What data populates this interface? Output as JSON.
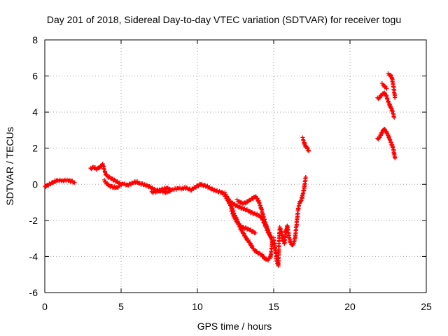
{
  "chart_data": {
    "type": "scatter",
    "title": "Day 201 of 2018, Sidereal Day-to-day VTEC variation (SDTVAR) for receiver togu",
    "xlabel": "GPS time / hours",
    "ylabel": "SDTVAR / TECUs",
    "xlim": [
      0,
      25
    ],
    "ylim": [
      -6,
      8
    ],
    "x_ticks": [
      0,
      5,
      10,
      15,
      20,
      25
    ],
    "y_ticks": [
      -6,
      -4,
      -2,
      0,
      2,
      4,
      6,
      8
    ],
    "x_tick_labels": [
      "0",
      "5",
      "10",
      "15",
      "20",
      "25"
    ],
    "y_tick_labels": [
      "-6",
      "-4",
      "-2",
      "0",
      "2",
      "4",
      "6",
      "8"
    ],
    "grid": true,
    "marker": "+",
    "color": "#ff0000",
    "series": [
      {
        "name": "SDTVAR",
        "segments": [
          [
            [
              0.0,
              -0.15
            ],
            [
              0.2,
              -0.05
            ],
            [
              0.4,
              0.05
            ],
            [
              0.6,
              0.15
            ],
            [
              0.8,
              0.2
            ],
            [
              1.0,
              0.22
            ],
            [
              1.2,
              0.2
            ],
            [
              1.4,
              0.22
            ],
            [
              1.6,
              0.2
            ],
            [
              1.8,
              0.15
            ],
            [
              1.95,
              0.1
            ]
          ],
          [
            [
              3.0,
              0.85
            ],
            [
              3.2,
              0.95
            ],
            [
              3.4,
              0.85
            ],
            [
              3.6,
              0.95
            ],
            [
              3.8,
              1.1
            ],
            [
              3.9,
              0.8
            ],
            [
              4.0,
              0.55
            ],
            [
              4.2,
              0.4
            ],
            [
              4.4,
              0.3
            ],
            [
              4.6,
              0.2
            ],
            [
              4.8,
              0.1
            ],
            [
              5.0,
              0.0
            ],
            [
              5.2,
              0.02
            ],
            [
              5.4,
              -0.05
            ],
            [
              5.6,
              0.0
            ],
            [
              5.8,
              0.1
            ],
            [
              6.0,
              0.15
            ],
            [
              6.2,
              0.05
            ],
            [
              6.4,
              0.0
            ],
            [
              6.6,
              -0.05
            ],
            [
              6.8,
              -0.1
            ],
            [
              7.0,
              -0.2
            ],
            [
              7.2,
              -0.3
            ],
            [
              7.4,
              -0.35
            ],
            [
              7.6,
              -0.3
            ],
            [
              7.8,
              -0.25
            ],
            [
              8.0,
              -0.2
            ],
            [
              8.2,
              -0.3
            ],
            [
              8.4,
              -0.28
            ],
            [
              8.6,
              -0.25
            ],
            [
              8.8,
              -0.22
            ],
            [
              9.0,
              -0.25
            ],
            [
              9.2,
              -0.2
            ],
            [
              9.4,
              -0.25
            ],
            [
              9.6,
              -0.3
            ],
            [
              9.8,
              -0.2
            ],
            [
              10.0,
              -0.1
            ],
            [
              10.2,
              0.0
            ],
            [
              10.4,
              -0.05
            ],
            [
              10.6,
              -0.1
            ],
            [
              10.8,
              -0.2
            ],
            [
              11.0,
              -0.3
            ],
            [
              11.2,
              -0.35
            ],
            [
              11.4,
              -0.4
            ],
            [
              11.6,
              -0.45
            ],
            [
              11.8,
              -0.6
            ],
            [
              12.0,
              -0.9
            ],
            [
              12.2,
              -1.2
            ],
            [
              12.4,
              -1.6
            ],
            [
              12.6,
              -2.0
            ],
            [
              12.8,
              -2.4
            ],
            [
              13.0,
              -2.7
            ],
            [
              13.2,
              -3.0
            ],
            [
              13.4,
              -3.2
            ],
            [
              13.6,
              -3.5
            ],
            [
              13.8,
              -3.7
            ],
            [
              14.0,
              -3.8
            ],
            [
              14.2,
              -3.9
            ],
            [
              14.4,
              -4.1
            ],
            [
              14.6,
              -4.2
            ],
            [
              14.8,
              -4.0
            ],
            [
              14.9,
              -3.3
            ]
          ],
          [
            [
              3.9,
              0.2
            ],
            [
              4.1,
              0.0
            ],
            [
              4.3,
              -0.1
            ],
            [
              4.5,
              -0.15
            ],
            [
              4.7,
              -0.2
            ],
            [
              4.9,
              -0.1
            ]
          ],
          [
            [
              7.0,
              -0.45
            ],
            [
              7.3,
              -0.4
            ],
            [
              7.6,
              -0.35
            ],
            [
              7.9,
              -0.45
            ],
            [
              8.2,
              -0.4
            ]
          ],
          [
            [
              11.8,
              -0.5
            ],
            [
              12.0,
              -0.8
            ],
            [
              12.2,
              -1.0
            ],
            [
              12.4,
              -1.1
            ],
            [
              12.6,
              -1.2
            ],
            [
              12.8,
              -1.3
            ],
            [
              13.0,
              -1.35
            ],
            [
              13.2,
              -1.4
            ],
            [
              13.4,
              -1.5
            ],
            [
              13.6,
              -1.6
            ],
            [
              13.8,
              -1.65
            ],
            [
              14.0,
              -1.7
            ],
            [
              14.2,
              -1.85
            ],
            [
              14.4,
              -2.2
            ],
            [
              14.6,
              -2.6
            ],
            [
              14.8,
              -2.9
            ]
          ],
          [
            [
              12.2,
              -1.4
            ],
            [
              12.4,
              -1.8
            ],
            [
              12.6,
              -2.1
            ],
            [
              12.8,
              -2.3
            ],
            [
              13.0,
              -2.4
            ],
            [
              13.2,
              -2.45
            ],
            [
              13.4,
              -2.5
            ],
            [
              13.6,
              -2.6
            ],
            [
              13.8,
              -2.7
            ]
          ],
          [
            [
              12.6,
              -0.9
            ],
            [
              12.8,
              -1.0
            ],
            [
              13.0,
              -1.05
            ],
            [
              13.2,
              -1.0
            ],
            [
              13.4,
              -0.9
            ],
            [
              13.6,
              -0.8
            ],
            [
              13.8,
              -0.65
            ],
            [
              14.0,
              -0.9
            ],
            [
              14.2,
              -1.4
            ],
            [
              14.4,
              -2.0
            ],
            [
              14.6,
              -2.5
            ],
            [
              14.8,
              -2.9
            ],
            [
              14.95,
              -3.3
            ]
          ],
          [
            [
              15.0,
              -3.0
            ],
            [
              15.1,
              -3.6
            ],
            [
              15.2,
              -4.2
            ],
            [
              15.3,
              -4.5
            ],
            [
              15.35,
              -3.2
            ],
            [
              15.4,
              -2.4
            ],
            [
              15.5,
              -2.6
            ],
            [
              15.6,
              -3.0
            ],
            [
              15.7,
              -3.3
            ],
            [
              15.8,
              -2.6
            ],
            [
              15.9,
              -2.3
            ],
            [
              16.0,
              -2.9
            ],
            [
              16.1,
              -3.2
            ],
            [
              16.2,
              -3.4
            ],
            [
              16.3,
              -3.3
            ],
            [
              16.4,
              -3.0
            ],
            [
              16.5,
              -2.2
            ],
            [
              16.6,
              -1.4
            ],
            [
              16.7,
              -1.0
            ],
            [
              16.8,
              -0.9
            ],
            [
              16.9,
              -0.6
            ],
            [
              17.0,
              -0.2
            ],
            [
              17.1,
              0.4
            ]
          ],
          [
            [
              16.9,
              2.55
            ],
            [
              17.0,
              2.3
            ],
            [
              17.1,
              2.1
            ],
            [
              17.2,
              2.0
            ],
            [
              17.3,
              1.85
            ]
          ],
          [
            [
              21.8,
              4.75
            ],
            [
              21.95,
              4.8
            ],
            [
              22.1,
              5.0
            ],
            [
              22.2,
              5.05
            ],
            [
              22.3,
              5.0
            ],
            [
              22.4,
              4.85
            ],
            [
              22.5,
              4.6
            ],
            [
              22.6,
              4.4
            ],
            [
              22.7,
              4.2
            ],
            [
              22.8,
              4.0
            ],
            [
              22.9,
              3.7
            ]
          ],
          [
            [
              22.1,
              5.55
            ],
            [
              22.25,
              5.45
            ],
            [
              22.4,
              5.3
            ]
          ],
          [
            [
              22.5,
              6.1
            ],
            [
              22.65,
              6.05
            ],
            [
              22.75,
              5.9
            ],
            [
              22.85,
              5.4
            ],
            [
              22.95,
              4.8
            ]
          ],
          [
            [
              21.8,
              2.5
            ],
            [
              21.95,
              2.6
            ],
            [
              22.1,
              2.9
            ],
            [
              22.2,
              3.05
            ],
            [
              22.3,
              3.0
            ],
            [
              22.45,
              2.8
            ],
            [
              22.6,
              2.5
            ],
            [
              22.75,
              2.2
            ],
            [
              22.85,
              1.9
            ],
            [
              22.95,
              1.45
            ]
          ]
        ]
      }
    ]
  }
}
